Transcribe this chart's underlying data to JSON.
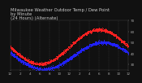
{
  "title_line1": "Milwaukee Weather Outdoor Temp / Dew Point",
  "title_line2": "by Minute",
  "title_line3": "(24 Hours) (Alternate)",
  "bg_color": "#111111",
  "plot_bg_color": "#111111",
  "grid_color": "#666666",
  "temp_color": "#ff2222",
  "dew_color": "#2222ff",
  "title_color": "#cccccc",
  "axis_color": "#aaaaaa",
  "ylim": [
    25,
    70
  ],
  "xlim": [
    0,
    1439
  ],
  "yticks": [
    30,
    40,
    50,
    60,
    70
  ],
  "ytick_labels": [
    "30",
    "40",
    "50",
    "60",
    "70"
  ],
  "xtick_positions": [
    0,
    120,
    240,
    360,
    480,
    600,
    720,
    840,
    960,
    1080,
    1200,
    1320,
    1439
  ],
  "xtick_labels": [
    "12",
    "2",
    "4",
    "6",
    "8",
    "10",
    "12",
    "2",
    "4",
    "6",
    "8",
    "10",
    "12"
  ],
  "vgrid_positions": [
    0,
    120,
    240,
    360,
    480,
    600,
    720,
    840,
    960,
    1080,
    1200,
    1320,
    1439
  ],
  "title_fontsize": 3.8,
  "tick_fontsize": 3.0,
  "marker_size": 0.5,
  "dot_alpha": 1.0
}
